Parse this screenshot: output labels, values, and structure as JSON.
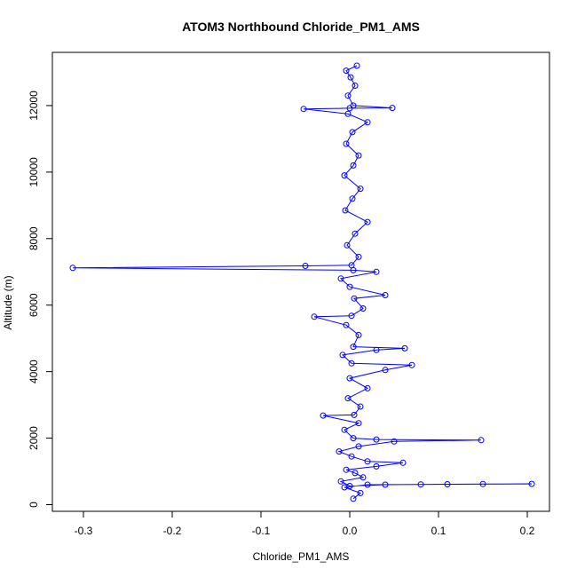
{
  "chart_data": {
    "type": "scatter",
    "title": "ATOM3 Northbound Chloride_PM1_AMS",
    "xlabel": "Chloride_PM1_AMS",
    "ylabel": "Altitude (m)",
    "xlim": [
      -0.335,
      0.225
    ],
    "ylim": [
      -200,
      13600
    ],
    "xticks": [
      -0.3,
      -0.2,
      -0.1,
      0.0,
      0.1,
      0.2
    ],
    "xtick_labels": [
      "-0.3",
      "-0.2",
      "-0.1",
      "0.0",
      "0.1",
      "0.2"
    ],
    "yticks": [
      0,
      2000,
      4000,
      6000,
      8000,
      10000,
      12000
    ],
    "ytick_labels": [
      "0",
      "2000",
      "4000",
      "6000",
      "8000",
      "10000",
      "12000"
    ],
    "grid": false,
    "colors": {
      "series": "#0000ff",
      "axes": "#000000"
    },
    "series": [
      {
        "style": "line+open-circles",
        "points": [
          [
            0.004,
            180
          ],
          [
            0.012,
            350
          ],
          [
            -0.006,
            520
          ],
          [
            0.02,
            600
          ],
          [
            0.08,
            610
          ],
          [
            0.15,
            620
          ],
          [
            0.205,
            625
          ],
          [
            0.11,
            615
          ],
          [
            0.04,
            600
          ],
          [
            0.0,
            560
          ],
          [
            -0.01,
            700
          ],
          [
            0.015,
            820
          ],
          [
            0.006,
            950
          ],
          [
            -0.004,
            1050
          ],
          [
            0.03,
            1150
          ],
          [
            0.06,
            1260
          ],
          [
            0.02,
            1300
          ],
          [
            0.002,
            1450
          ],
          [
            -0.012,
            1600
          ],
          [
            0.01,
            1750
          ],
          [
            0.05,
            1900
          ],
          [
            0.148,
            1940
          ],
          [
            0.03,
            1960
          ],
          [
            0.004,
            2000
          ],
          [
            -0.006,
            2250
          ],
          [
            0.01,
            2450
          ],
          [
            -0.03,
            2680
          ],
          [
            0.005,
            2700
          ],
          [
            0.012,
            2950
          ],
          [
            -0.002,
            3200
          ],
          [
            0.02,
            3500
          ],
          [
            0.0,
            3800
          ],
          [
            0.04,
            4050
          ],
          [
            0.07,
            4200
          ],
          [
            0.002,
            4250
          ],
          [
            -0.008,
            4500
          ],
          [
            0.03,
            4650
          ],
          [
            0.062,
            4700
          ],
          [
            0.004,
            4750
          ],
          [
            0.01,
            5100
          ],
          [
            -0.004,
            5400
          ],
          [
            -0.04,
            5650
          ],
          [
            0.002,
            5680
          ],
          [
            0.015,
            5900
          ],
          [
            0.005,
            6200
          ],
          [
            0.04,
            6300
          ],
          [
            0.0,
            6550
          ],
          [
            -0.01,
            6800
          ],
          [
            0.03,
            7000
          ],
          [
            0.004,
            7050
          ],
          [
            -0.312,
            7120
          ],
          [
            -0.05,
            7180
          ],
          [
            0.002,
            7200
          ],
          [
            0.01,
            7450
          ],
          [
            -0.003,
            7800
          ],
          [
            0.006,
            8150
          ],
          [
            0.02,
            8500
          ],
          [
            -0.005,
            8850
          ],
          [
            0.003,
            9200
          ],
          [
            0.012,
            9500
          ],
          [
            -0.006,
            9900
          ],
          [
            0.004,
            10200
          ],
          [
            0.01,
            10500
          ],
          [
            -0.004,
            10850
          ],
          [
            0.003,
            11200
          ],
          [
            0.02,
            11500
          ],
          [
            -0.002,
            11750
          ],
          [
            -0.052,
            11900
          ],
          [
            0.0,
            11920
          ],
          [
            0.048,
            11930
          ],
          [
            0.004,
            12000
          ],
          [
            -0.002,
            12300
          ],
          [
            0.006,
            12600
          ],
          [
            0.001,
            12850
          ],
          [
            -0.004,
            13050
          ],
          [
            0.008,
            13200
          ]
        ]
      }
    ]
  }
}
